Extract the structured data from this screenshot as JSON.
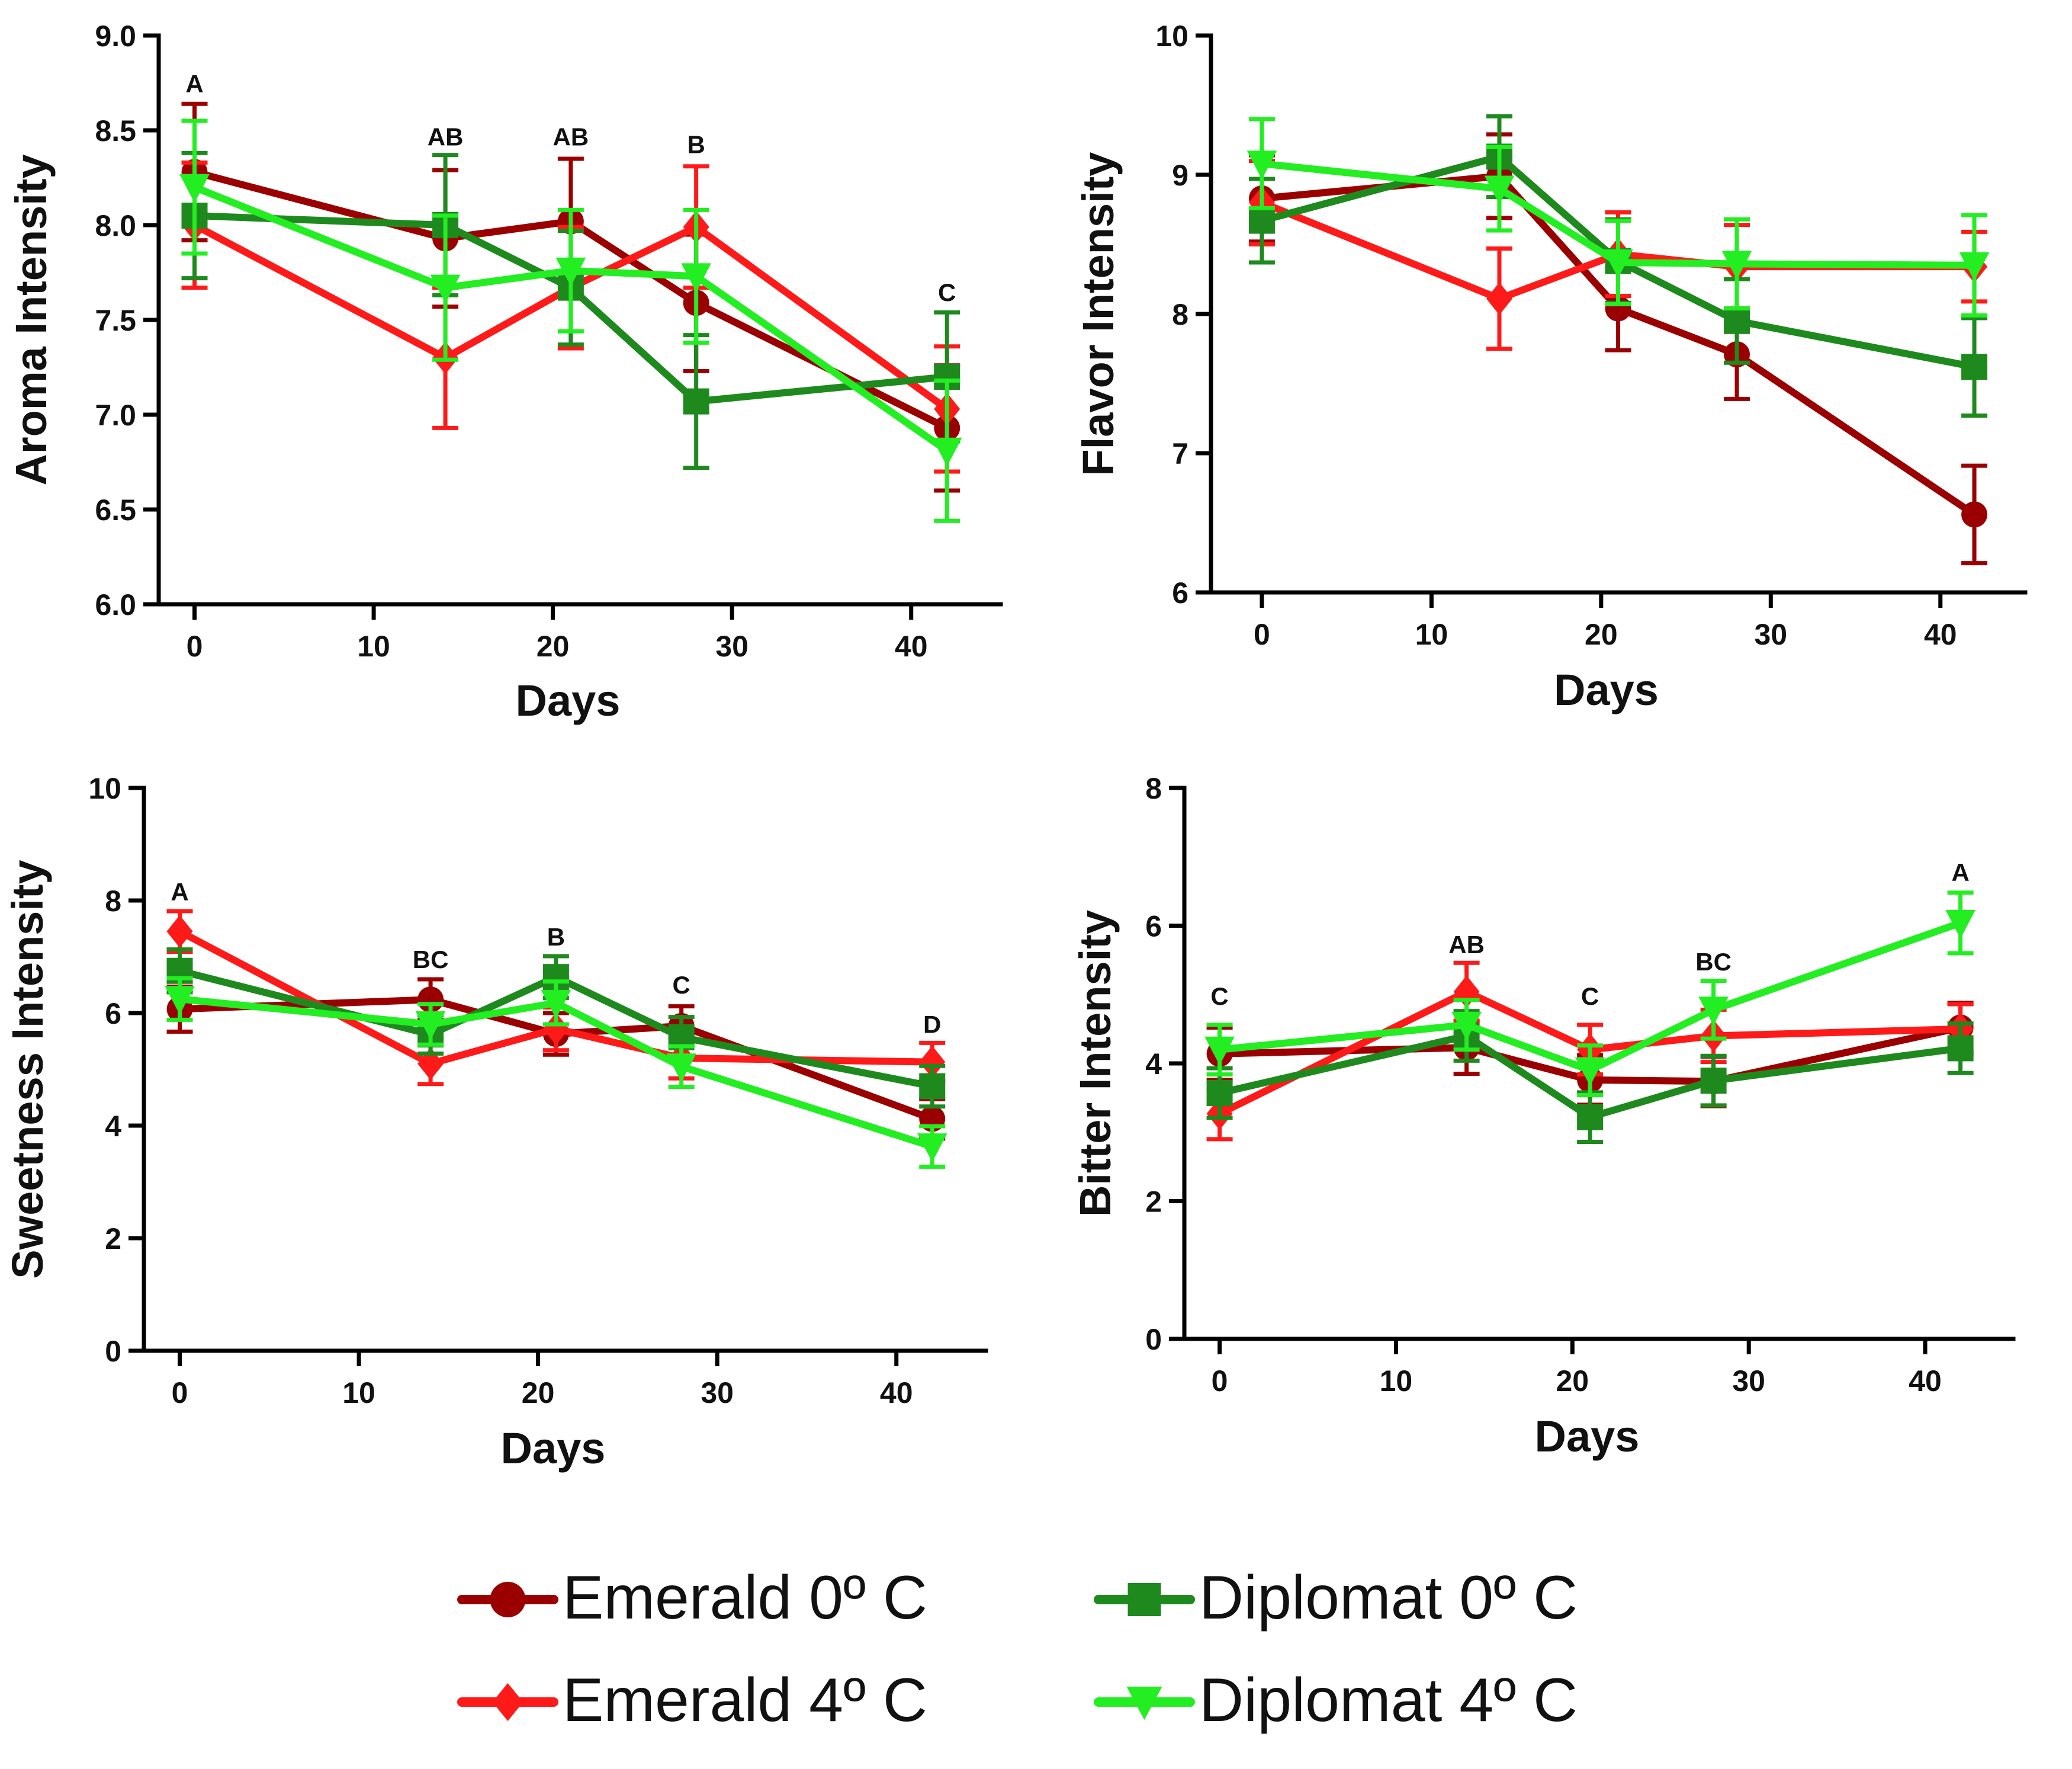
{
  "colors": {
    "Emerald 0º C": "#9b0000",
    "Emerald 4º C": "#ff1a1a",
    "Diplomat 0º C": "#1e8a1e",
    "Diplomat 4º C": "#22ee22"
  },
  "legend": {
    "items": [
      {
        "label": "Emerald 0º C",
        "marker": "circle"
      },
      {
        "label": "Diplomat 0º C",
        "marker": "square"
      },
      {
        "label": "Emerald 4º C",
        "marker": "diamond"
      },
      {
        "label": "Diplomat 4º C",
        "marker": "triangle-down"
      }
    ]
  },
  "chart_data": [
    {
      "type": "line",
      "panel": "top-left",
      "xlabel": "Days",
      "ylabel": "Aroma Intensity",
      "xlim": [
        -2,
        45
      ],
      "ylim": [
        6.0,
        9.0
      ],
      "xticks": [
        "0",
        "10",
        "20",
        "30",
        "40"
      ],
      "xtick_values": [
        0,
        10,
        20,
        30,
        40
      ],
      "yticks": [
        "6.0",
        "6.5",
        "7.0",
        "7.5",
        "8.0",
        "8.5",
        "9.0"
      ],
      "ytick_values": [
        6.0,
        6.5,
        7.0,
        7.5,
        8.0,
        8.5,
        9.0
      ],
      "x": [
        0,
        14,
        21,
        28,
        42
      ],
      "series": [
        {
          "name": "Emerald 0º C",
          "marker": "circle",
          "values": [
            8.28,
            7.93,
            8.02,
            7.59,
            6.93
          ],
          "errors": [
            0.36,
            0.36,
            0.33,
            0.36,
            0.33
          ]
        },
        {
          "name": "Emerald 4º C",
          "marker": "diamond",
          "values": [
            8.0,
            7.3,
            7.67,
            7.99,
            7.03
          ],
          "errors": [
            0.33,
            0.37,
            0.32,
            0.32,
            0.33
          ]
        },
        {
          "name": "Diplomat 0º C",
          "marker": "square",
          "values": [
            8.05,
            8.0,
            7.67,
            7.07,
            7.2
          ],
          "errors": [
            0.33,
            0.37,
            0.3,
            0.35,
            0.34
          ]
        },
        {
          "name": "Diplomat 4º C",
          "marker": "triangle-down",
          "values": [
            8.2,
            7.67,
            7.76,
            7.73,
            6.81
          ],
          "errors": [
            0.35,
            0.38,
            0.32,
            0.35,
            0.37
          ]
        }
      ],
      "annotations": [
        {
          "text": "A",
          "x": 0,
          "y": 8.7
        },
        {
          "text": "AB",
          "x": 14,
          "y": 8.42
        },
        {
          "text": "AB",
          "x": 21,
          "y": 8.42
        },
        {
          "text": "B",
          "x": 28,
          "y": 8.38
        },
        {
          "text": "C",
          "x": 42,
          "y": 7.6
        }
      ]
    },
    {
      "type": "line",
      "panel": "top-right",
      "xlabel": "Days",
      "ylabel": "Flavor Intensity",
      "xlim": [
        -3,
        45
      ],
      "ylim": [
        6,
        10
      ],
      "xticks": [
        "0",
        "10",
        "20",
        "30",
        "40"
      ],
      "xtick_values": [
        0,
        10,
        20,
        30,
        40
      ],
      "yticks": [
        "6",
        "7",
        "8",
        "9",
        "10"
      ],
      "ytick_values": [
        6,
        7,
        8,
        9,
        10
      ],
      "x": [
        0,
        14,
        21,
        28,
        42
      ],
      "series": [
        {
          "name": "Emerald 0º C",
          "marker": "circle",
          "values": [
            8.83,
            8.99,
            8.04,
            7.71,
            6.56
          ],
          "errors": [
            0.31,
            0.3,
            0.3,
            0.32,
            0.35
          ]
        },
        {
          "name": "Emerald 4º C",
          "marker": "diamond",
          "values": [
            8.8,
            8.11,
            8.43,
            8.34,
            8.34
          ],
          "errors": [
            0.3,
            0.36,
            0.3,
            0.3,
            0.25
          ]
        },
        {
          "name": "Diplomat 0º C",
          "marker": "square",
          "values": [
            8.67,
            9.13,
            8.38,
            7.95,
            7.62
          ],
          "errors": [
            0.3,
            0.29,
            0.3,
            0.3,
            0.35
          ]
        },
        {
          "name": "Diplomat 4º C",
          "marker": "triangle-down",
          "values": [
            9.08,
            8.9,
            8.37,
            8.36,
            8.35
          ],
          "errors": [
            0.32,
            0.3,
            0.3,
            0.32,
            0.36
          ]
        }
      ],
      "annotations": []
    },
    {
      "type": "line",
      "panel": "bottom-left",
      "xlabel": "Days",
      "ylabel": "Sweetness Intensity",
      "xlim": [
        -2,
        45
      ],
      "ylim": [
        0,
        10
      ],
      "xticks": [
        "0",
        "10",
        "20",
        "30",
        "40"
      ],
      "xtick_values": [
        0,
        10,
        20,
        30,
        40
      ],
      "yticks": [
        "0",
        "2",
        "4",
        "6",
        "8",
        "10"
      ],
      "ytick_values": [
        0,
        2,
        4,
        6,
        8,
        10
      ],
      "x": [
        0,
        14,
        21,
        28,
        42
      ],
      "series": [
        {
          "name": "Emerald 0º C",
          "marker": "circle",
          "values": [
            6.07,
            6.24,
            5.63,
            5.77,
            4.12
          ],
          "errors": [
            0.4,
            0.36,
            0.37,
            0.35,
            0.35
          ]
        },
        {
          "name": "Emerald 4º C",
          "marker": "diamond",
          "values": [
            7.45,
            5.1,
            5.72,
            5.2,
            5.13
          ],
          "errors": [
            0.36,
            0.36,
            0.38,
            0.36,
            0.34
          ]
        },
        {
          "name": "Diplomat 0º C",
          "marker": "square",
          "values": [
            6.75,
            5.62,
            6.64,
            5.57,
            4.7
          ],
          "errors": [
            0.38,
            0.34,
            0.37,
            0.36,
            0.36
          ]
        },
        {
          "name": "Diplomat 4º C",
          "marker": "triangle-down",
          "values": [
            6.25,
            5.8,
            6.18,
            5.05,
            3.63
          ],
          "errors": [
            0.37,
            0.36,
            0.38,
            0.36,
            0.36
          ]
        }
      ],
      "annotations": [
        {
          "text": "A",
          "x": 0,
          "y": 8.0
        },
        {
          "text": "BC",
          "x": 14,
          "y": 6.8
        },
        {
          "text": "B",
          "x": 21,
          "y": 7.2
        },
        {
          "text": "C",
          "x": 28,
          "y": 6.35
        },
        {
          "text": "D",
          "x": 42,
          "y": 5.65
        }
      ]
    },
    {
      "type": "line",
      "panel": "bottom-right",
      "xlabel": "Days",
      "ylabel": "Bitter Intensity",
      "xlim": [
        -2,
        45
      ],
      "ylim": [
        0,
        8
      ],
      "xticks": [
        "0",
        "10",
        "20",
        "30",
        "40"
      ],
      "xtick_values": [
        0,
        10,
        20,
        30,
        40
      ],
      "yticks": [
        "0",
        "2",
        "4",
        "6",
        "8"
      ],
      "ytick_values": [
        0,
        2,
        4,
        6,
        8
      ],
      "x": [
        0,
        14,
        21,
        28,
        42
      ],
      "series": [
        {
          "name": "Emerald 0º C",
          "marker": "circle",
          "values": [
            4.14,
            4.23,
            3.76,
            3.74,
            4.52
          ],
          "errors": [
            0.38,
            0.38,
            0.36,
            0.36,
            0.36
          ]
        },
        {
          "name": "Emerald 4º C",
          "marker": "diamond",
          "values": [
            3.27,
            5.04,
            4.2,
            4.4,
            4.5
          ],
          "errors": [
            0.37,
            0.42,
            0.36,
            0.38,
            0.36
          ]
        },
        {
          "name": "Diplomat 0º C",
          "marker": "square",
          "values": [
            3.57,
            4.4,
            3.22,
            3.75,
            4.22
          ],
          "errors": [
            0.36,
            0.36,
            0.36,
            0.36,
            0.36
          ]
        },
        {
          "name": "Diplomat 4º C",
          "marker": "triangle-down",
          "values": [
            4.2,
            4.56,
            3.9,
            4.78,
            6.04
          ],
          "errors": [
            0.36,
            0.36,
            0.36,
            0.42,
            0.44
          ]
        }
      ],
      "annotations": [
        {
          "text": "C",
          "x": 0,
          "y": 4.85
        },
        {
          "text": "AB",
          "x": 14,
          "y": 5.6
        },
        {
          "text": "C",
          "x": 21,
          "y": 4.85
        },
        {
          "text": "BC",
          "x": 28,
          "y": 5.35
        },
        {
          "text": "A",
          "x": 42,
          "y": 6.65
        }
      ]
    }
  ]
}
